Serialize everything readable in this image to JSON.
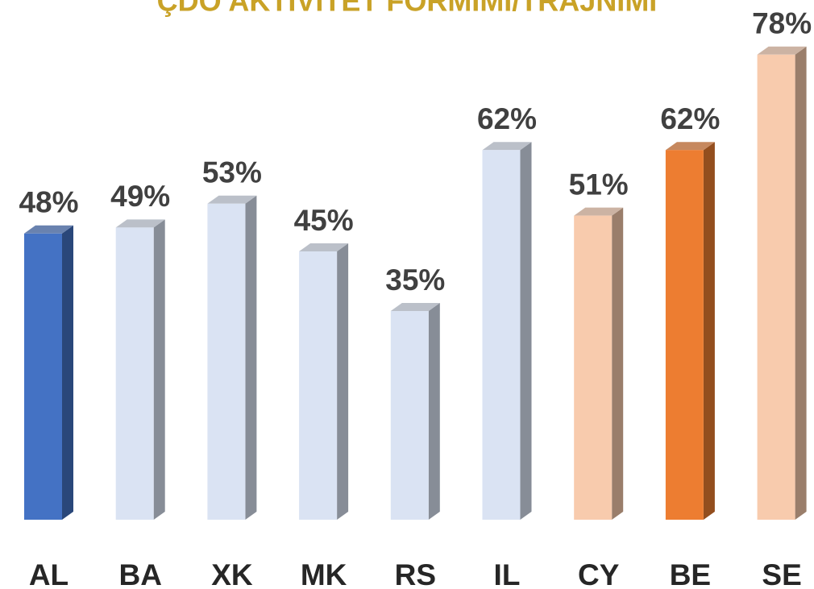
{
  "chart_data": {
    "type": "bar3d",
    "title": "ÇDO AKTIVITET FORMIMI/TRAJNIMI",
    "categories": [
      "AL",
      "BA",
      "XK",
      "MK",
      "RS",
      "IL",
      "CY",
      "BE",
      "SE"
    ],
    "values": [
      48,
      49,
      53,
      45,
      35,
      62,
      51,
      62,
      78
    ],
    "value_labels": [
      "48%",
      "49%",
      "53%",
      "45%",
      "35%",
      "62%",
      "51%",
      "62%",
      "78%"
    ],
    "colors": [
      "#4472c4",
      "#dae3f3",
      "#dae3f3",
      "#dae3f3",
      "#dae3f3",
      "#dae3f3",
      "#f8cbad",
      "#ed7d31",
      "#f8cbad"
    ]
  }
}
